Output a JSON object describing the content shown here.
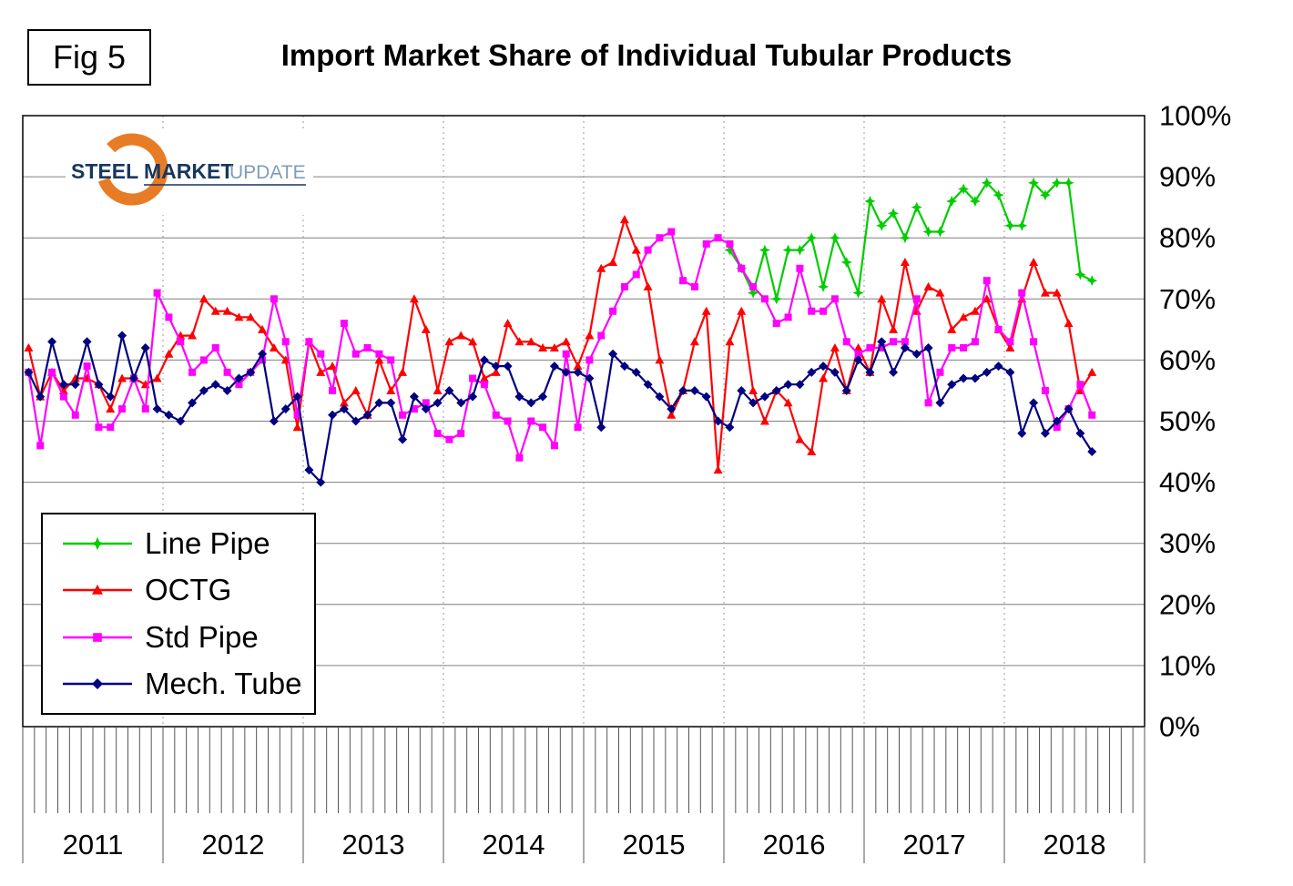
{
  "figure": {
    "fig_label": "Fig 5",
    "title": "Import Market Share of Individual Tubular Products"
  },
  "logo": {
    "word1": "STEEL",
    "word2": "MARKET",
    "word3": "UPDATE",
    "navy": "#17375E",
    "light_blue": "#7F9DB8",
    "orange": "#E87C26"
  },
  "chart_data": {
    "type": "line",
    "title": "Import Market Share of Individual Tubular Products",
    "x_axis": {
      "unit": "month",
      "start": "2011-01",
      "end": "2018-08",
      "year_labels": [
        "2011",
        "2012",
        "2013",
        "2014",
        "2015",
        "2016",
        "2017",
        "2018"
      ]
    },
    "y_axis": {
      "min": 0,
      "max": 100,
      "tick_step": 10,
      "tick_labels": [
        "0%",
        "10%",
        "20%",
        "30%",
        "40%",
        "50%",
        "60%",
        "70%",
        "80%",
        "90%",
        "100%"
      ],
      "side": "right"
    },
    "grid": {
      "horizontal": true,
      "vertical_year_dotted": true
    },
    "legend_position": "bottom-left",
    "series": [
      {
        "name": "Line Pipe",
        "color": "#00CC00",
        "marker": "star",
        "values": [
          null,
          null,
          null,
          null,
          null,
          null,
          null,
          null,
          null,
          null,
          null,
          null,
          null,
          null,
          null,
          null,
          null,
          null,
          null,
          null,
          null,
          null,
          null,
          null,
          null,
          null,
          null,
          null,
          null,
          null,
          null,
          null,
          null,
          null,
          null,
          null,
          null,
          null,
          null,
          null,
          null,
          null,
          null,
          null,
          null,
          null,
          null,
          null,
          null,
          null,
          null,
          null,
          null,
          null,
          null,
          null,
          null,
          null,
          null,
          null,
          78,
          75,
          71,
          78,
          70,
          78,
          78,
          80,
          72,
          80,
          76,
          71,
          86,
          82,
          84,
          80,
          85,
          81,
          81,
          86,
          88,
          86,
          89,
          87,
          82,
          82,
          89,
          87,
          89,
          89,
          74,
          73
        ]
      },
      {
        "name": "OCTG",
        "color": "#FF0000",
        "marker": "triangle",
        "values": [
          62,
          54,
          58,
          55,
          57,
          57,
          56,
          52,
          57,
          57,
          56,
          57,
          61,
          64,
          64,
          70,
          68,
          68,
          67,
          67,
          65,
          62,
          60,
          49,
          63,
          58,
          59,
          53,
          55,
          51,
          60,
          55,
          58,
          70,
          65,
          55,
          63,
          64,
          63,
          57,
          58,
          66,
          63,
          63,
          62,
          62,
          63,
          59,
          64,
          75,
          76,
          83,
          78,
          72,
          60,
          51,
          55,
          63,
          68,
          42,
          63,
          68,
          55,
          50,
          55,
          53,
          47,
          45,
          57,
          62,
          55,
          62,
          58,
          70,
          65,
          76,
          68,
          72,
          71,
          65,
          67,
          68,
          70,
          65,
          62,
          70,
          76,
          71,
          71,
          66,
          55,
          58
        ]
      },
      {
        "name": "Std Pipe",
        "color": "#FF00FF",
        "marker": "square",
        "values": [
          58,
          46,
          58,
          54,
          51,
          59,
          49,
          49,
          52,
          57,
          52,
          71,
          67,
          63,
          58,
          60,
          62,
          58,
          56,
          58,
          60,
          70,
          63,
          51,
          63,
          61,
          55,
          66,
          61,
          62,
          61,
          60,
          51,
          52,
          53,
          48,
          47,
          48,
          57,
          56,
          51,
          50,
          44,
          50,
          49,
          46,
          61,
          49,
          60,
          64,
          68,
          72,
          74,
          78,
          80,
          81,
          73,
          72,
          79,
          80,
          79,
          75,
          72,
          70,
          66,
          67,
          75,
          68,
          68,
          70,
          63,
          61,
          62,
          62,
          63,
          63,
          70,
          53,
          58,
          62,
          62,
          63,
          73,
          65,
          63,
          71,
          63,
          55,
          49,
          52,
          56,
          51
        ]
      },
      {
        "name": "Mech. Tube",
        "color": "#000080",
        "marker": "diamond",
        "values": [
          58,
          54,
          63,
          56,
          56,
          63,
          56,
          54,
          64,
          57,
          62,
          52,
          51,
          50,
          53,
          55,
          56,
          55,
          57,
          58,
          61,
          50,
          52,
          54,
          42,
          40,
          51,
          52,
          50,
          51,
          53,
          53,
          47,
          54,
          52,
          53,
          55,
          53,
          54,
          60,
          59,
          59,
          54,
          53,
          54,
          59,
          58,
          58,
          57,
          49,
          61,
          59,
          58,
          56,
          54,
          52,
          55,
          55,
          54,
          50,
          49,
          55,
          53,
          54,
          55,
          56,
          56,
          58,
          59,
          58,
          55,
          60,
          58,
          63,
          58,
          62,
          61,
          62,
          53,
          56,
          57,
          57,
          58,
          59,
          58,
          48,
          53,
          48,
          50,
          52,
          48,
          45
        ]
      }
    ]
  }
}
